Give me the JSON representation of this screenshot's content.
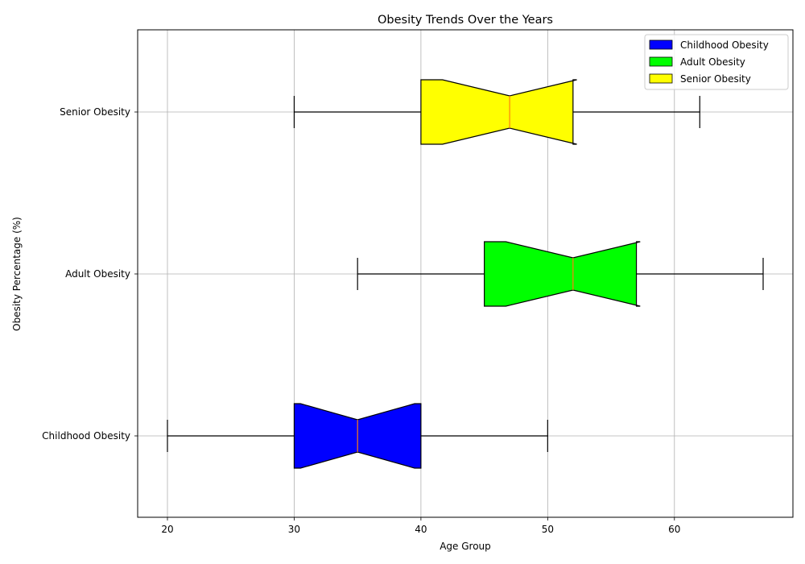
{
  "chart_data": {
    "type": "boxplot",
    "orientation": "horizontal",
    "notched": true,
    "title": "Obesity Trends Over the Years",
    "xlabel": "Age Group",
    "ylabel": "Obesity Percentage (%)",
    "xlim": [
      17.65,
      69.35
    ],
    "xticks": [
      20,
      30,
      40,
      50,
      60
    ],
    "grid": true,
    "legend_position": "top-right",
    "series": [
      {
        "name": "Childhood Obesity",
        "color": "#0000ff",
        "min": 20,
        "q1": 30,
        "median": 35,
        "q3": 40,
        "max": 50,
        "notch_low": 30.5,
        "notch_high": 39.5
      },
      {
        "name": "Adult Obesity",
        "color": "#00ff00",
        "min": 35,
        "q1": 45,
        "median": 52,
        "q3": 57,
        "max": 67,
        "notch_low": 46.7,
        "notch_high": 57.3
      },
      {
        "name": "Senior Obesity",
        "color": "#ffff00",
        "min": 30,
        "q1": 40,
        "median": 47,
        "q3": 52,
        "max": 62,
        "notch_low": 41.7,
        "notch_high": 52.3
      }
    ]
  }
}
